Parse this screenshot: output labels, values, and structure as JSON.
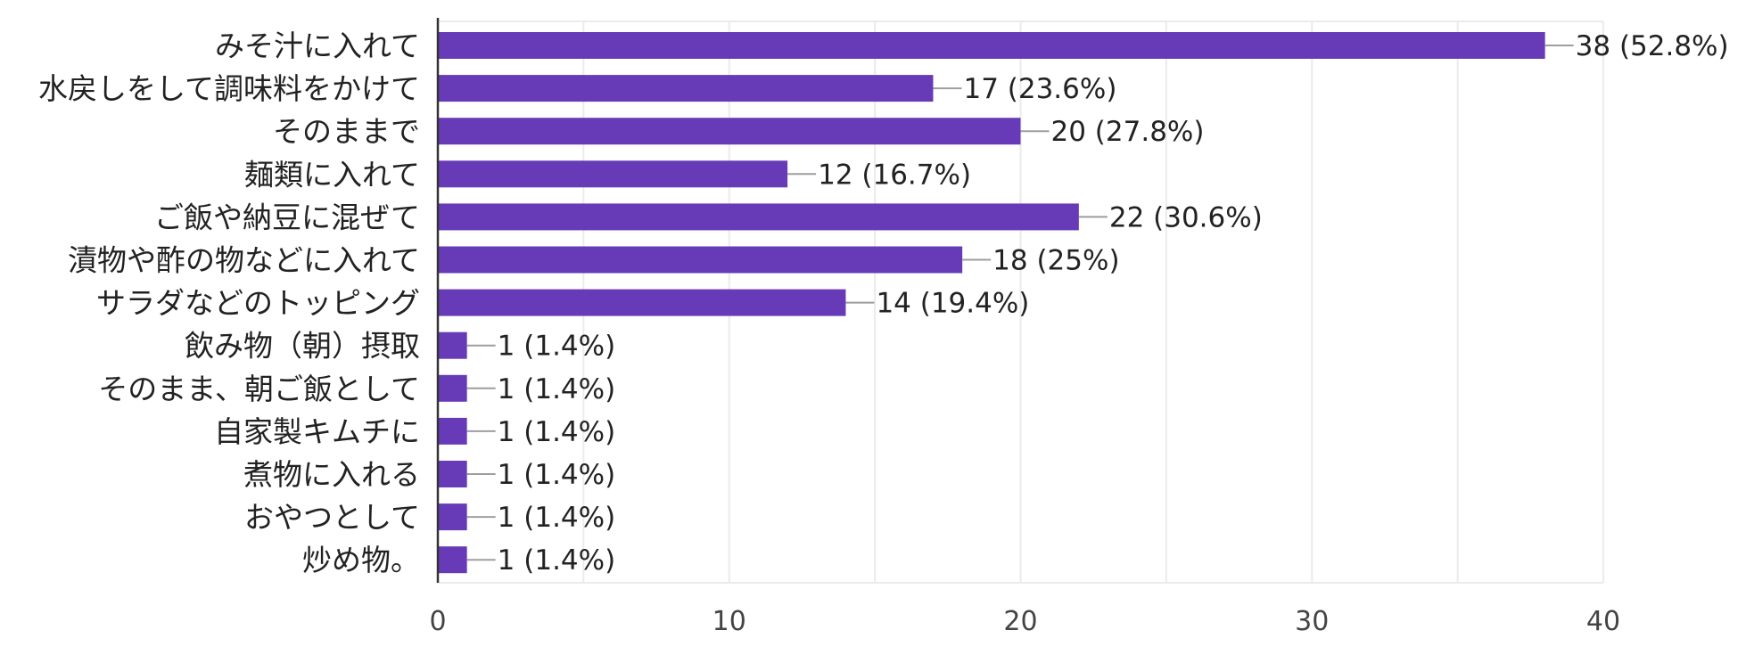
{
  "chart_data": {
    "type": "bar",
    "orientation": "horizontal",
    "title": "",
    "xlabel": "",
    "ylabel": "",
    "categories": [
      "みそ汁に入れて",
      "水戻しをして調味料をかけて",
      "そのままで",
      "麺類に入れて",
      "ご飯や納豆に混ぜて",
      "漬物や酢の物などに入れて",
      "サラダなどのトッピング",
      "飲み物（朝）摂取",
      "そのまま、朝ご飯として",
      "自家製キムチに",
      "煮物に入れる",
      "おやつとして",
      "炒め物。"
    ],
    "values": [
      38,
      17,
      20,
      12,
      22,
      18,
      14,
      1,
      1,
      1,
      1,
      1,
      1
    ],
    "value_labels": [
      "38 (52.8%)",
      "17 (23.6%)",
      "20 (27.8%)",
      "12 (16.7%)",
      "22 (30.6%)",
      "18 (25%)",
      "14 (19.4%)",
      "1 (1.4%)",
      "1 (1.4%)",
      "1 (1.4%)",
      "1 (1.4%)",
      "1 (1.4%)",
      "1 (1.4%)"
    ],
    "xlim": [
      0,
      40
    ],
    "xticks": [
      0,
      10,
      20,
      30,
      40
    ],
    "grid": true,
    "bar_color": "#673ab7",
    "leader_line_color": "#9e9e9e",
    "grid_color": "#ebebeb",
    "axis_color": "#333333"
  }
}
